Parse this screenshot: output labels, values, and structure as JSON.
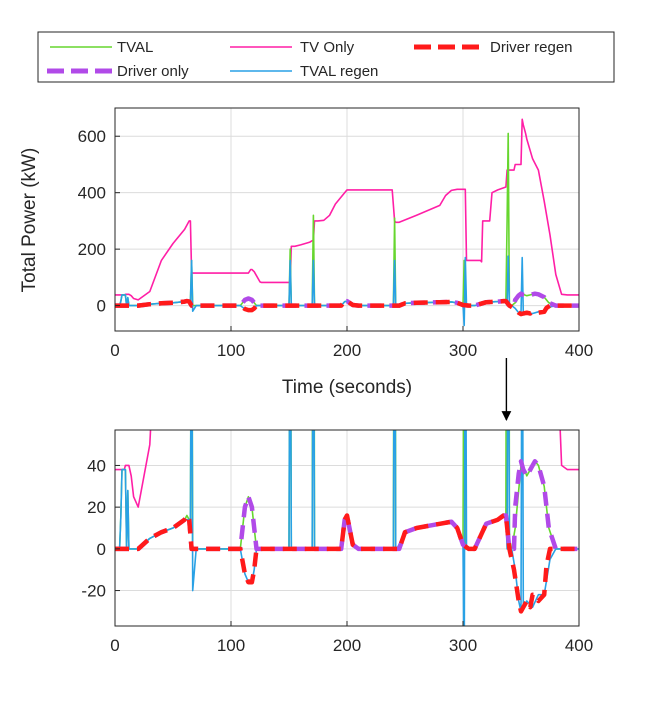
{
  "chart_data": [
    {
      "id": "top",
      "type": "line",
      "xlabel": "Time (seconds)",
      "ylabel": "Total Power (kW)",
      "xlim": [
        0,
        400
      ],
      "ylim": [
        -90,
        700
      ],
      "xticks": [
        0,
        100,
        200,
        300,
        400
      ],
      "yticks": [
        0,
        200,
        400,
        600
      ],
      "grid": true,
      "legend": {
        "position": "top",
        "entries": [
          {
            "key": "tval",
            "label": "TVAL"
          },
          {
            "key": "tvonly",
            "label": "TV Only"
          },
          {
            "key": "drvregen",
            "label": "Driver regen"
          },
          {
            "key": "drvonly",
            "label": "Driver only"
          },
          {
            "key": "tvalregen",
            "label": "TVAL regen"
          }
        ]
      },
      "series": [
        {
          "key": "tvonly",
          "name": "TV Only",
          "color": "#ff1fa6",
          "dash": "solid",
          "x": [
            0,
            8,
            9,
            12,
            14,
            16,
            20,
            30,
            40,
            50,
            60,
            64,
            65,
            66,
            80,
            100,
            110,
            111,
            115,
            117,
            118,
            120,
            125,
            126,
            150,
            151,
            152,
            155,
            160,
            168,
            170,
            171,
            172,
            175,
            180,
            185,
            190,
            200,
            210,
            215,
            230,
            238,
            239,
            241,
            242,
            245,
            260,
            280,
            285,
            290,
            295,
            301,
            302,
            303,
            306,
            315,
            316,
            317,
            320,
            323,
            325,
            330,
            337,
            338,
            339,
            340,
            344,
            345,
            348,
            350,
            351,
            352,
            354,
            355,
            360,
            365,
            370,
            375,
            380,
            385,
            390,
            400
          ],
          "y": [
            38,
            38,
            40,
            40,
            35,
            25,
            20,
            50,
            160,
            220,
            270,
            300,
            300,
            115,
            115,
            115,
            115,
            115,
            115,
            128,
            128,
            120,
            84,
            82,
            82,
            82,
            210,
            210,
            215,
            225,
            230,
            230,
            300,
            300,
            302,
            320,
            360,
            410,
            410,
            410,
            410,
            410,
            410,
            300,
            295,
            295,
            320,
            355,
            390,
            408,
            412,
            412,
            412,
            160,
            160,
            160,
            155,
            300,
            300,
            300,
            400,
            410,
            420,
            480,
            480,
            480,
            480,
            500,
            500,
            500,
            660,
            640,
            610,
            590,
            520,
            480,
            370,
            250,
            110,
            40,
            38,
            38
          ]
        },
        {
          "key": "tval",
          "name": "TVAL",
          "color": "#66d62e",
          "dash": "solid",
          "x": [
            0,
            4,
            5,
            6,
            9,
            10,
            11,
            12,
            20,
            30,
            40,
            50,
            60,
            62,
            64,
            65,
            66,
            67,
            70,
            80,
            100,
            108,
            112,
            115,
            118,
            122,
            125,
            130,
            140,
            150,
            151,
            152,
            153,
            154,
            160,
            170,
            171,
            172,
            173,
            174,
            180,
            190,
            195,
            198,
            200,
            205,
            210,
            230,
            238,
            240,
            241,
            242,
            243,
            244,
            250,
            260,
            280,
            290,
            295,
            300,
            301,
            302,
            303,
            304,
            310,
            320,
            330,
            335,
            337,
            338,
            339,
            340,
            341,
            342,
            345,
            350,
            351,
            353,
            355,
            358,
            360,
            362,
            365,
            370,
            374,
            380,
            382,
            385,
            390,
            400
          ],
          "y": [
            0,
            0,
            15,
            38,
            38,
            0,
            28,
            0,
            0,
            5,
            8,
            10,
            14,
            16,
            14,
            10,
            160,
            0,
            0,
            0,
            0,
            0,
            20,
            25,
            20,
            0,
            0,
            0,
            0,
            0,
            200,
            0,
            0,
            0,
            0,
            0,
            320,
            0,
            0,
            0,
            0,
            0,
            0,
            14,
            16,
            2,
            0,
            0,
            0,
            0,
            310,
            0,
            0,
            0,
            8,
            10,
            12,
            13,
            10,
            2,
            160,
            0,
            0,
            0,
            0,
            12,
            14,
            16,
            16,
            300,
            610,
            0,
            0,
            0,
            10,
            40,
            42,
            38,
            35,
            38,
            40,
            42,
            40,
            30,
            10,
            0,
            0,
            0,
            0,
            0
          ]
        },
        {
          "key": "tvalregen",
          "name": "TVAL regen",
          "color": "#29a1e5",
          "dash": "solid",
          "x": [
            0,
            4,
            5,
            6,
            9,
            10,
            11,
            12,
            20,
            30,
            40,
            50,
            60,
            64,
            65,
            66,
            67,
            70,
            80,
            100,
            108,
            112,
            115,
            118,
            120,
            122,
            125,
            130,
            140,
            150,
            151,
            152,
            153,
            160,
            170,
            171,
            172,
            173,
            180,
            190,
            195,
            198,
            200,
            205,
            210,
            230,
            238,
            240,
            241,
            242,
            243,
            250,
            260,
            280,
            290,
            295,
            300,
            301,
            302,
            303,
            304,
            310,
            320,
            330,
            335,
            337,
            338,
            339,
            340,
            341,
            342,
            345,
            348,
            350,
            351,
            352,
            355,
            360,
            365,
            370,
            375,
            380,
            385,
            390,
            400
          ],
          "y": [
            0,
            0,
            15,
            38,
            38,
            0,
            28,
            0,
            0,
            5,
            8,
            10,
            14,
            14,
            10,
            160,
            -20,
            0,
            0,
            0,
            0,
            -12,
            -16,
            -16,
            -10,
            0,
            0,
            0,
            0,
            0,
            160,
            0,
            0,
            0,
            0,
            160,
            0,
            0,
            0,
            0,
            0,
            14,
            16,
            2,
            0,
            0,
            0,
            0,
            160,
            0,
            0,
            8,
            10,
            12,
            13,
            10,
            2,
            -70,
            170,
            0,
            0,
            0,
            12,
            14,
            16,
            16,
            0,
            175,
            0,
            0,
            0,
            -10,
            -25,
            -30,
            170,
            -28,
            -25,
            -28,
            -22,
            -22,
            -5,
            0,
            0,
            0,
            0
          ]
        },
        {
          "key": "drvonly",
          "name": "Driver only",
          "color": "#b14ae8",
          "dash": "dash",
          "x": [
            0,
            10,
            20,
            30,
            40,
            50,
            60,
            62,
            64,
            66,
            70,
            80,
            100,
            108,
            112,
            115,
            118,
            122,
            125,
            130,
            140,
            150,
            160,
            170,
            180,
            190,
            195,
            198,
            200,
            205,
            210,
            230,
            240,
            245,
            250,
            260,
            280,
            290,
            295,
            300,
            305,
            310,
            320,
            330,
            335,
            337,
            340,
            344,
            345,
            348,
            350,
            352,
            355,
            358,
            360,
            362,
            365,
            370,
            374,
            380,
            390,
            400
          ],
          "y": [
            0,
            0,
            0,
            5,
            8,
            10,
            14,
            16,
            14,
            0,
            0,
            0,
            0,
            0,
            20,
            25,
            20,
            0,
            0,
            0,
            0,
            0,
            0,
            0,
            0,
            0,
            0,
            14,
            16,
            2,
            0,
            0,
            0,
            0,
            8,
            10,
            12,
            13,
            10,
            2,
            0,
            0,
            12,
            14,
            16,
            16,
            0,
            0,
            20,
            36,
            42,
            38,
            35,
            38,
            40,
            42,
            40,
            30,
            10,
            0,
            0,
            0
          ]
        },
        {
          "key": "drvregen",
          "name": "Driver regen",
          "color": "#ff1a1a",
          "dash": "dash",
          "x": [
            0,
            10,
            20,
            30,
            40,
            50,
            60,
            62,
            64,
            66,
            70,
            80,
            100,
            108,
            112,
            115,
            118,
            120,
            122,
            125,
            130,
            140,
            150,
            160,
            170,
            180,
            190,
            195,
            198,
            200,
            205,
            210,
            230,
            240,
            245,
            250,
            260,
            280,
            290,
            295,
            300,
            305,
            310,
            320,
            330,
            335,
            337,
            340,
            344,
            348,
            350,
            352,
            355,
            358,
            360,
            362,
            365,
            370,
            372,
            375,
            380,
            390,
            400
          ],
          "y": [
            0,
            0,
            0,
            5,
            8,
            10,
            14,
            16,
            14,
            0,
            0,
            0,
            0,
            0,
            -12,
            -16,
            -16,
            -10,
            0,
            0,
            0,
            0,
            0,
            0,
            0,
            0,
            0,
            0,
            14,
            16,
            2,
            0,
            0,
            0,
            0,
            8,
            10,
            12,
            13,
            10,
            2,
            0,
            0,
            12,
            14,
            16,
            16,
            0,
            -10,
            -25,
            -30,
            -28,
            -25,
            -28,
            -22,
            -22,
            -25,
            -22,
            -8,
            0,
            0,
            0,
            0
          ]
        }
      ]
    },
    {
      "id": "bottom",
      "type": "line",
      "xlabel": "",
      "ylabel": "",
      "xlim": [
        0,
        400
      ],
      "ylim": [
        -37,
        57
      ],
      "xticks": [
        0,
        100,
        200,
        300,
        400
      ],
      "yticks": [
        -20,
        0,
        20,
        40
      ],
      "grid": true,
      "series_ref": "top"
    }
  ],
  "annotations": {
    "zoom_arrow": {
      "from_panel": "top",
      "to_panel": "bottom",
      "x": 340
    }
  }
}
